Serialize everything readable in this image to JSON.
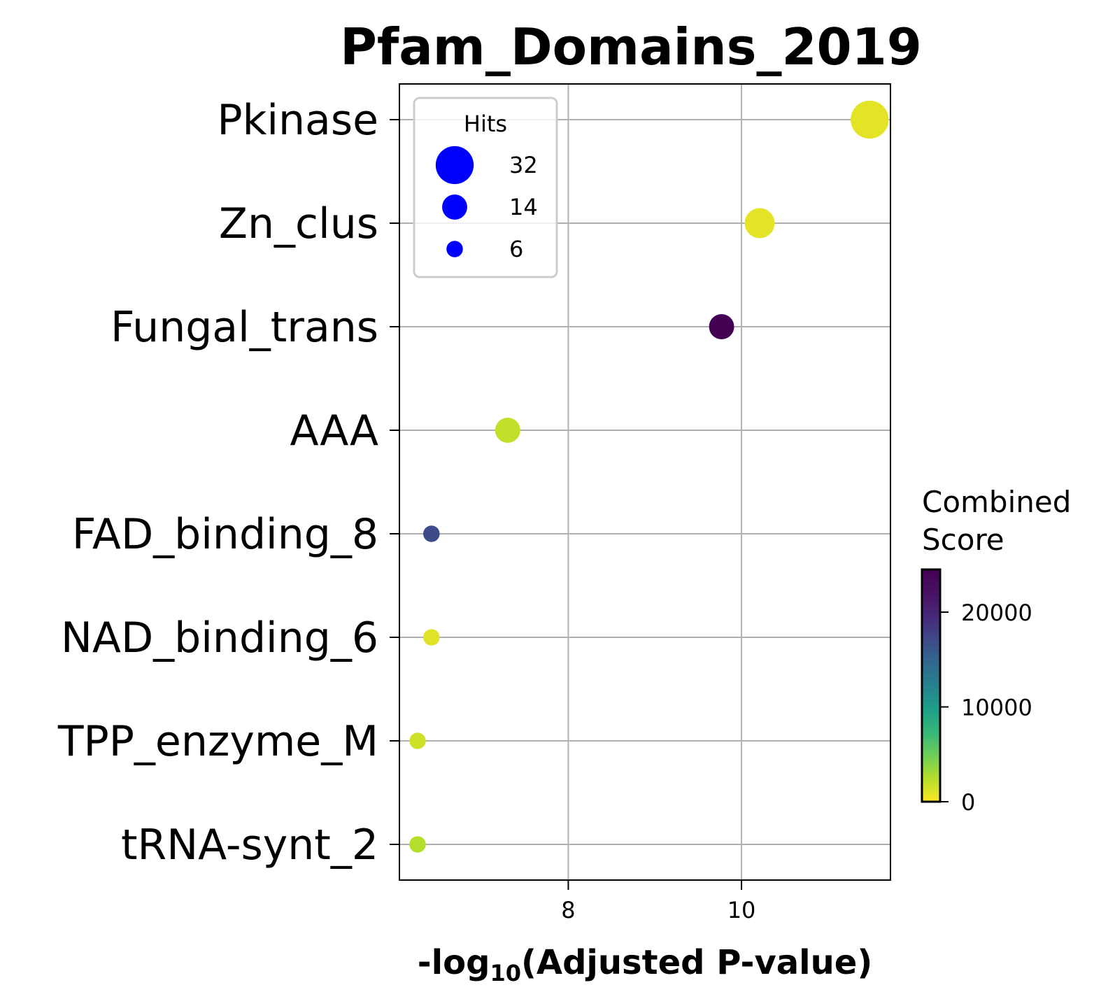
{
  "chart_data": {
    "type": "scatter",
    "title": "Pfam_Domains_2019",
    "xlabel_prefix": "-log",
    "xlabel_sub": "10",
    "xlabel_suffix": "(Adjusted P-value)",
    "xlim": [
      6.05,
      11.72
    ],
    "xticks": [
      8,
      10
    ],
    "grid": true,
    "categories": [
      "Pkinase",
      "Zn_clus",
      "Fungal_trans",
      "AAA",
      "FAD_binding_8",
      "NAD_binding_6",
      "TPP_enzyme_M",
      "tRNA-synt_2"
    ],
    "points": [
      {
        "term": "Pkinase",
        "x": 11.48,
        "hits": 32,
        "combined_score": 850
      },
      {
        "term": "Zn_clus",
        "x": 10.21,
        "hits": 20,
        "combined_score": 900
      },
      {
        "term": "Fungal_trans",
        "x": 9.77,
        "hits": 14,
        "combined_score": 24500
      },
      {
        "term": "AAA",
        "x": 7.3,
        "hits": 14,
        "combined_score": 2000
      },
      {
        "term": "FAD_binding_8",
        "x": 6.42,
        "hits": 6,
        "combined_score": 17000
      },
      {
        "term": "NAD_binding_6",
        "x": 6.42,
        "hits": 6,
        "combined_score": 1000
      },
      {
        "term": "TPP_enzyme_M",
        "x": 6.26,
        "hits": 6,
        "combined_score": 1600
      },
      {
        "term": "tRNA-synt_2",
        "x": 6.26,
        "hits": 6,
        "combined_score": 2500
      }
    ],
    "legend": {
      "title": "Hits",
      "placement": "top-left",
      "marker_color": "#0000ff",
      "entries": [
        {
          "label": "32",
          "hits": 32
        },
        {
          "label": "14",
          "hits": 14
        },
        {
          "label": "6",
          "hits": 6
        }
      ]
    },
    "colorbar": {
      "title_line1": "Combined",
      "title_line2": "Score",
      "colormap": "viridis_r",
      "range": [
        0,
        24500
      ],
      "ticks": [
        0,
        10000,
        20000
      ],
      "tick_labels": [
        "0",
        "10000",
        "20000"
      ]
    }
  }
}
